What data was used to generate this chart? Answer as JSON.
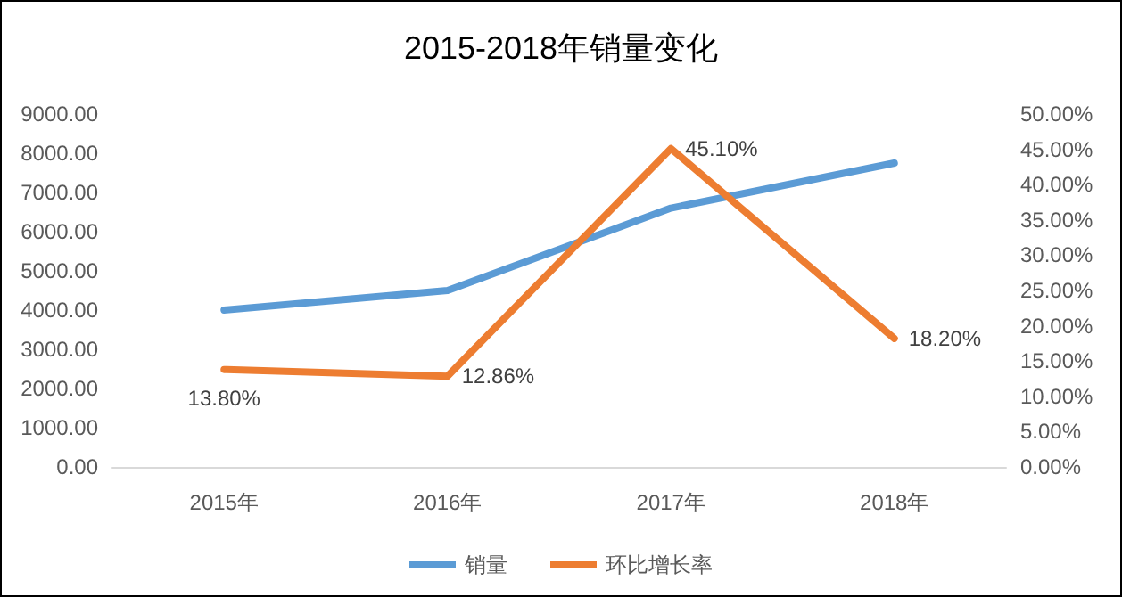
{
  "chart_data": {
    "type": "line",
    "title": "2015-2018年销量变化",
    "categories": [
      "2015年",
      "2016年",
      "2017年",
      "2018年"
    ],
    "series": [
      {
        "name": "销量",
        "color": "#5b9bd5",
        "values": [
          4000,
          4500,
          6600,
          7750
        ]
      },
      {
        "name": "环比增长率",
        "color": "#ed7d31",
        "axis": "y2",
        "values": [
          13.8,
          12.86,
          45.1,
          18.2
        ],
        "value_labels": [
          "13.80%",
          "12.86%",
          "45.10%",
          "18.20%"
        ]
      }
    ],
    "ylim": [
      0,
      9000
    ],
    "yticks": [
      {
        "value": 0,
        "label": "0.00"
      },
      {
        "value": 1000,
        "label": "1000.00"
      },
      {
        "value": 2000,
        "label": "2000.00"
      },
      {
        "value": 3000,
        "label": "3000.00"
      },
      {
        "value": 4000,
        "label": "4000.00"
      },
      {
        "value": 5000,
        "label": "5000.00"
      },
      {
        "value": 6000,
        "label": "6000.00"
      },
      {
        "value": 7000,
        "label": "7000.00"
      },
      {
        "value": 8000,
        "label": "8000.00"
      },
      {
        "value": 9000,
        "label": "9000.00"
      }
    ],
    "y2lim": [
      0,
      50
    ],
    "y2ticks": [
      {
        "value": 0,
        "label": "0.00%"
      },
      {
        "value": 5,
        "label": "5.00%"
      },
      {
        "value": 10,
        "label": "10.00%"
      },
      {
        "value": 15,
        "label": "15.00%"
      },
      {
        "value": 20,
        "label": "20.00%"
      },
      {
        "value": 25,
        "label": "25.00%"
      },
      {
        "value": 30,
        "label": "30.00%"
      },
      {
        "value": 35,
        "label": "35.00%"
      },
      {
        "value": 40,
        "label": "40.00%"
      },
      {
        "value": 45,
        "label": "45.00%"
      },
      {
        "value": 50,
        "label": "50.00%"
      }
    ],
    "grid": false,
    "legend": "bottom",
    "marker": "none",
    "line_style": "solid"
  }
}
